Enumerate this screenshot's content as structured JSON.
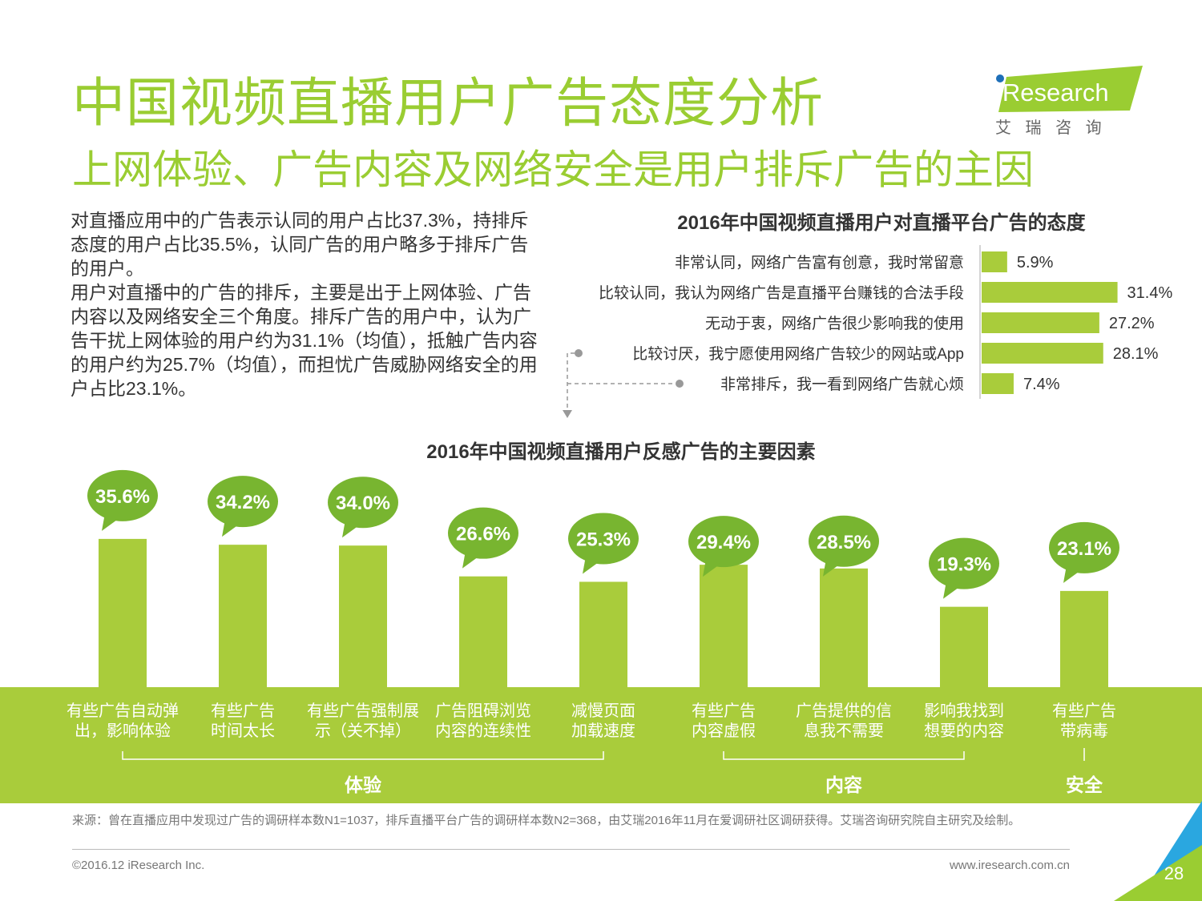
{
  "header": {
    "title": "中国视频直播用户广告态度分析",
    "subtitle": "上网体验、广告内容及网络安全是用户排斥广告的主因",
    "logo_text": "iResearch",
    "logo_cn": "艾 瑞 咨 询"
  },
  "summary": {
    "p1": "对直播应用中的广告表示认同的用户占比37.3%，持排斥态度的用户占比35.5%，认同广告的用户略多于排斥广告的用户。",
    "p2": "用户对直播中的广告的排斥，主要是出于上网体验、广告内容以及网络安全三个角度。排斥广告的用户中，认为广告干扰上网体验的用户约为31.1%（均值），抵触广告内容的用户约为25.7%（均值），而担忧广告威胁网络安全的用户占比23.1%。"
  },
  "colors": {
    "accent": "#9ACD32",
    "bar": "#A9CC3B",
    "band": "#A9CC3B",
    "bubble": "#78B530"
  },
  "chart_data": [
    {
      "type": "bar",
      "orientation": "horizontal",
      "title": "2016年中国视频直播用户对直播平台广告的态度",
      "categories": [
        "非常认同，网络广告富有创意，我时常留意",
        "比较认同，我认为网络广告是直播平台赚钱的合法手段",
        "无动于衷，网络广告很少影响我的使用",
        "比较讨厌，我宁愿使用网络广告较少的网站或App",
        "非常排斥，我一看到网络广告就心烦"
      ],
      "values": [
        5.9,
        31.4,
        27.2,
        28.1,
        7.4
      ],
      "labels": [
        "5.9%",
        "31.4%",
        "27.2%",
        "28.1%",
        "7.4%"
      ],
      "unit": "%"
    },
    {
      "type": "bar",
      "title": "2016年中国视频直播用户反感广告的主要因素",
      "categories": [
        "有些广告自动弹出，影响体验",
        "有些广告时间太长",
        "有些广告强制展示（关不掉）",
        "广告阻碍浏览内容的连续性",
        "减慢页面加载速度",
        "有些广告内容虚假",
        "广告提供的信息我不需要",
        "影响我找到想要的内容",
        "有些广告带病毒"
      ],
      "category_lines": [
        [
          "有些广告自动弹",
          "出，影响体验"
        ],
        [
          "有些广告",
          "时间太长"
        ],
        [
          "有些广告强制展",
          "示（关不掉）"
        ],
        [
          "广告阻碍浏览",
          "内容的连续性"
        ],
        [
          "减慢页面",
          "加载速度"
        ],
        [
          "有些广告",
          "内容虚假"
        ],
        [
          "广告提供的信",
          "息我不需要"
        ],
        [
          "影响我找到",
          "想要的内容"
        ],
        [
          "有些广告",
          "带病毒"
        ]
      ],
      "values": [
        35.6,
        34.2,
        34.0,
        26.6,
        25.3,
        29.4,
        28.5,
        19.3,
        23.1
      ],
      "labels": [
        "35.6%",
        "34.2%",
        "34.0%",
        "26.6%",
        "25.3%",
        "29.4%",
        "28.5%",
        "19.3%",
        "23.1%"
      ],
      "groups": [
        {
          "name": "体验",
          "from": 0,
          "to": 4
        },
        {
          "name": "内容",
          "from": 5,
          "to": 7
        },
        {
          "name": "安全",
          "from": 8,
          "to": 8
        }
      ],
      "unit": "%"
    }
  ],
  "footer": {
    "source": "来源：曾在直播应用中发现过广告的调研样本数N1=1037，排斥直播平台广告的调研样本数N2=368，由艾瑞2016年11月在爱调研社区调研获得。艾瑞咨询研究院自主研究及绘制。",
    "copyright": "©2016.12 iResearch Inc.",
    "website": "www.iresearch.com.cn",
    "page": "28"
  }
}
